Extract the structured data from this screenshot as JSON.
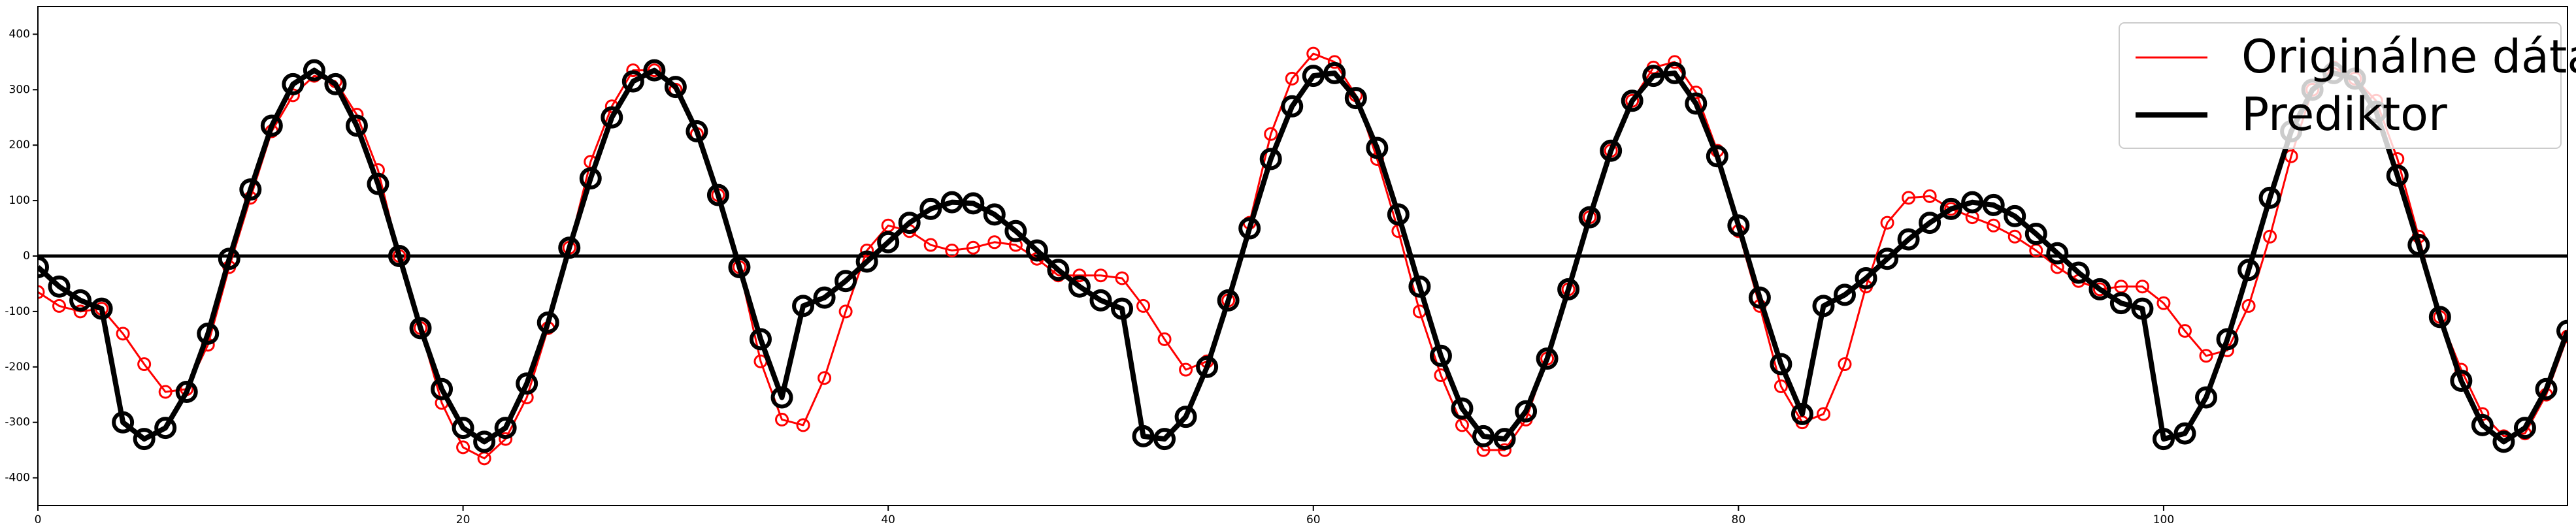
{
  "chart_data": {
    "type": "line",
    "x": [
      0,
      1,
      2,
      3,
      4,
      5,
      6,
      7,
      8,
      9,
      10,
      11,
      12,
      13,
      14,
      15,
      16,
      17,
      18,
      19,
      20,
      21,
      22,
      23,
      24,
      25,
      26,
      27,
      28,
      29,
      30,
      31,
      32,
      33,
      34,
      35,
      36,
      37,
      38,
      39,
      40,
      41,
      42,
      43,
      44,
      45,
      46,
      47,
      48,
      49,
      50,
      51,
      52,
      53,
      54,
      55,
      56,
      57,
      58,
      59,
      60,
      61,
      62,
      63,
      64,
      65,
      66,
      67,
      68,
      69,
      70,
      71,
      72,
      73,
      74,
      75,
      76,
      77,
      78,
      79,
      80,
      81,
      82,
      83,
      84,
      85,
      86,
      87,
      88,
      89,
      90,
      91,
      92,
      93,
      94,
      95,
      96,
      97,
      98,
      99,
      100,
      101,
      102,
      103,
      104,
      105,
      106,
      107,
      108,
      109,
      110,
      111,
      112,
      113,
      114,
      115,
      116,
      117,
      118,
      119
    ],
    "series": [
      {
        "name": "Originálne dáta",
        "color": "#ff0000",
        "values": [
          -65,
          -90,
          -100,
          -95,
          -140,
          -195,
          -245,
          -240,
          -160,
          -20,
          105,
          225,
          290,
          325,
          315,
          255,
          155,
          0,
          -130,
          -265,
          -345,
          -365,
          -330,
          -255,
          -130,
          15,
          170,
          270,
          335,
          335,
          300,
          220,
          110,
          -20,
          -190,
          -295,
          -305,
          -220,
          -100,
          10,
          55,
          45,
          20,
          10,
          15,
          25,
          20,
          -5,
          -35,
          -35,
          -35,
          -40,
          -90,
          -150,
          -205,
          -190,
          -80,
          60,
          220,
          320,
          365,
          350,
          290,
          175,
          45,
          -100,
          -215,
          -305,
          -350,
          -350,
          -295,
          -185,
          -60,
          70,
          190,
          280,
          340,
          350,
          295,
          190,
          45,
          -90,
          -235,
          -300,
          -285,
          -195,
          -55,
          60,
          105,
          108,
          85,
          70,
          55,
          35,
          10,
          -20,
          -45,
          -60,
          -55,
          -55,
          -85,
          -135,
          -180,
          -170,
          -90,
          35,
          180,
          300,
          340,
          320,
          280,
          175,
          35,
          -110,
          -205,
          -285,
          -325,
          -320,
          -250,
          -145
        ]
      },
      {
        "name": "Prediktor",
        "color": "#000000",
        "values": [
          -20,
          -55,
          -80,
          -95,
          -300,
          -330,
          -310,
          -245,
          -140,
          -5,
          120,
          235,
          310,
          335,
          310,
          235,
          130,
          0,
          -130,
          -240,
          -310,
          -335,
          -310,
          -230,
          -120,
          15,
          140,
          250,
          315,
          335,
          305,
          225,
          110,
          -20,
          -150,
          -255,
          -90,
          -75,
          -45,
          -10,
          25,
          60,
          85,
          97,
          95,
          75,
          45,
          10,
          -25,
          -55,
          -80,
          -95,
          -325,
          -330,
          -290,
          -200,
          -80,
          50,
          175,
          270,
          325,
          330,
          285,
          195,
          75,
          -55,
          -180,
          -275,
          -325,
          -330,
          -280,
          -185,
          -60,
          70,
          190,
          280,
          325,
          330,
          275,
          180,
          55,
          -75,
          -195,
          -285,
          -90,
          -70,
          -40,
          -5,
          30,
          60,
          85,
          97,
          92,
          72,
          40,
          5,
          -30,
          -60,
          -85,
          -95,
          -330,
          -320,
          -255,
          -150,
          -25,
          105,
          225,
          300,
          330,
          320,
          260,
          145,
          20,
          -110,
          -225,
          -305,
          -335,
          -310,
          -240,
          -135
        ]
      }
    ],
    "xlim": [
      0,
      119
    ],
    "ylim": [
      -450,
      450
    ],
    "xticks": [
      0,
      20,
      40,
      60,
      80,
      100
    ],
    "yticks": [
      -400,
      -300,
      -200,
      -100,
      0,
      100,
      200,
      300,
      400
    ],
    "axhline": 0,
    "legend": "upper right"
  }
}
